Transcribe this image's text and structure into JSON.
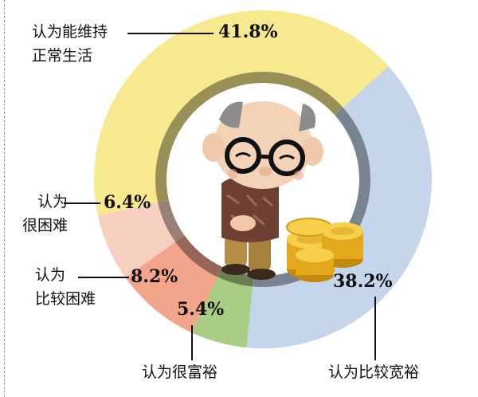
{
  "chart_data": {
    "type": "donut",
    "title": "",
    "slices": [
      {
        "label": "认为比较宽裕",
        "value": 38.2,
        "display": "38.2%",
        "color": "#c5d5ea"
      },
      {
        "label": "认为很富裕",
        "value": 5.4,
        "display": "5.4%",
        "color": "#a9cd85"
      },
      {
        "label": "认为比较困难",
        "value": 8.2,
        "display": "8.2%",
        "color": "#f2a58a"
      },
      {
        "label": "认为很困难",
        "value": 6.4,
        "display": "6.4%",
        "color": "#f7cfc0"
      },
      {
        "label": "认为能维持正常生活",
        "value": 41.8,
        "display": "41.8%",
        "color": "#f6e98e"
      }
    ],
    "inner_ring_color": "#9a9a90",
    "center_image": "grandfather-with-coins"
  },
  "labels": {
    "normal": "认为能维持\n正常生活",
    "very_hard": "认为\n很困难",
    "hard": "认为\n比较困难",
    "rich": "认为很富裕",
    "comfortable": "认为比较宽裕"
  },
  "values": {
    "normal": "41.8%",
    "very_hard": "6.4%",
    "hard": "8.2%",
    "rich": "5.4%",
    "comfortable": "38.2%"
  }
}
